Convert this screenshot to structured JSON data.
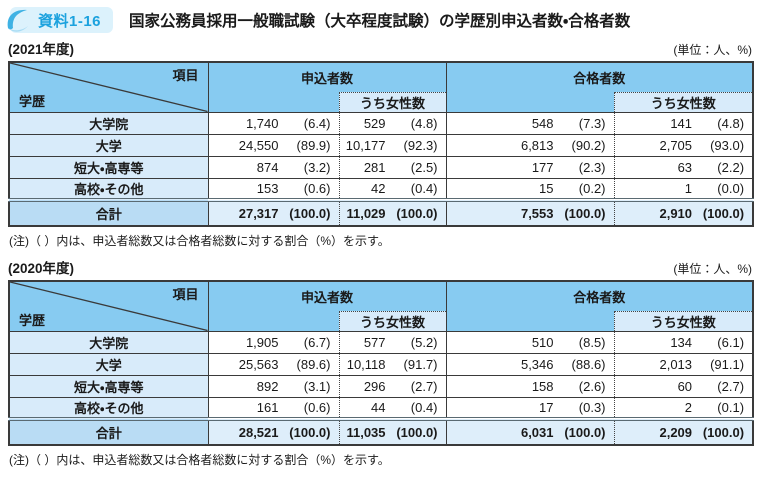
{
  "header": {
    "badge_label": "資料1-16",
    "title": "国家公務員採用一般職試験（大卒程度試験）の学歴別申込者数・合格者数"
  },
  "colors": {
    "header-blue": "#87cbf1",
    "light-blue": "#d8ebfa",
    "total-label-blue": "#b9dcf4",
    "total-row-blue": "#deeefa",
    "badge-bg": "#dcf2fc",
    "badge-text": "#1ca2de",
    "swoosh": "#3fb2e4"
  },
  "tables": [
    {
      "year_label": "(2021年度)",
      "unit_label": "(単位：人、%)",
      "header": {
        "corner_top": "項目",
        "corner_bottom": "学歴",
        "group1": "申込者数",
        "group2": "合格者数",
        "subheader": "うち女性数"
      },
      "rows": [
        {
          "label": "大学院",
          "app_total": "1,740",
          "app_total_pct": "(6.4)",
          "app_women": "529",
          "app_women_pct": "(4.8)",
          "pass_total": "548",
          "pass_total_pct": "(7.3)",
          "pass_women": "141",
          "pass_women_pct": "(4.8)"
        },
        {
          "label": "大学",
          "app_total": "24,550",
          "app_total_pct": "(89.9)",
          "app_women": "10,177",
          "app_women_pct": "(92.3)",
          "pass_total": "6,813",
          "pass_total_pct": "(90.2)",
          "pass_women": "2,705",
          "pass_women_pct": "(93.0)"
        },
        {
          "label": "短大・高専等",
          "app_total": "874",
          "app_total_pct": "(3.2)",
          "app_women": "281",
          "app_women_pct": "(2.5)",
          "pass_total": "177",
          "pass_total_pct": "(2.3)",
          "pass_women": "63",
          "pass_women_pct": "(2.2)"
        },
        {
          "label": "高校・その他",
          "app_total": "153",
          "app_total_pct": "(0.6)",
          "app_women": "42",
          "app_women_pct": "(0.4)",
          "pass_total": "15",
          "pass_total_pct": "(0.2)",
          "pass_women": "1",
          "pass_women_pct": "(0.0)"
        }
      ],
      "total_row": {
        "label": "合計",
        "app_total": "27,317",
        "app_total_pct": "(100.0)",
        "app_women": "11,029",
        "app_women_pct": "(100.0)",
        "pass_total": "7,553",
        "pass_total_pct": "(100.0)",
        "pass_women": "2,910",
        "pass_women_pct": "(100.0)"
      },
      "note": "(注)（ ）内は、申込者総数又は合格者総数に対する割合（%）を示す。"
    },
    {
      "year_label": "(2020年度)",
      "unit_label": "(単位：人、%)",
      "header": {
        "corner_top": "項目",
        "corner_bottom": "学歴",
        "group1": "申込者数",
        "group2": "合格者数",
        "subheader": "うち女性数"
      },
      "rows": [
        {
          "label": "大学院",
          "app_total": "1,905",
          "app_total_pct": "(6.7)",
          "app_women": "577",
          "app_women_pct": "(5.2)",
          "pass_total": "510",
          "pass_total_pct": "(8.5)",
          "pass_women": "134",
          "pass_women_pct": "(6.1)"
        },
        {
          "label": "大学",
          "app_total": "25,563",
          "app_total_pct": "(89.6)",
          "app_women": "10,118",
          "app_women_pct": "(91.7)",
          "pass_total": "5,346",
          "pass_total_pct": "(88.6)",
          "pass_women": "2,013",
          "pass_women_pct": "(91.1)"
        },
        {
          "label": "短大・高専等",
          "app_total": "892",
          "app_total_pct": "(3.1)",
          "app_women": "296",
          "app_women_pct": "(2.7)",
          "pass_total": "158",
          "pass_total_pct": "(2.6)",
          "pass_women": "60",
          "pass_women_pct": "(2.7)"
        },
        {
          "label": "高校・その他",
          "app_total": "161",
          "app_total_pct": "(0.6)",
          "app_women": "44",
          "app_women_pct": "(0.4)",
          "pass_total": "17",
          "pass_total_pct": "(0.3)",
          "pass_women": "2",
          "pass_women_pct": "(0.1)"
        }
      ],
      "total_row": {
        "label": "合計",
        "app_total": "28,521",
        "app_total_pct": "(100.0)",
        "app_women": "11,035",
        "app_women_pct": "(100.0)",
        "pass_total": "6,031",
        "pass_total_pct": "(100.0)",
        "pass_women": "2,209",
        "pass_women_pct": "(100.0)"
      },
      "note": "(注)（ ）内は、申込者総数又は合格者総数に対する割合（%）を示す。"
    }
  ]
}
